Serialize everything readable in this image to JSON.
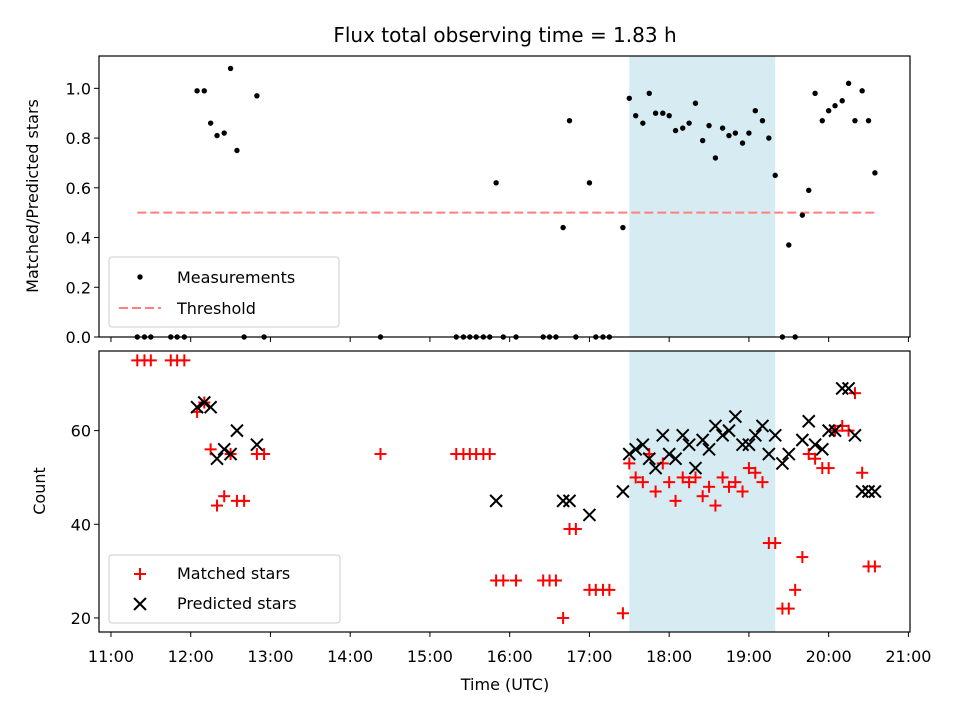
{
  "chart_data": {
    "title": "Flux total observing time = 1.83 h",
    "xlabel": "Time (UTC)",
    "x_tick_labels": [
      "11:00",
      "12:00",
      "13:00",
      "14:00",
      "15:00",
      "16:00",
      "17:00",
      "18:00",
      "19:00",
      "20:00",
      "21:00"
    ],
    "xlim_hours": [
      10.85,
      21.02
    ],
    "highlight_span_hours": [
      17.5,
      19.33
    ],
    "colors": {
      "highlight": "#add8e6",
      "threshold": "#ff7f7f",
      "matched": "#ff0000",
      "predicted": "#000000",
      "measure": "#000000"
    },
    "panels": [
      {
        "type": "scatter",
        "ylabel": "Matched/Predicted stars",
        "ylim": [
          0,
          1.13
        ],
        "y_ticks": [
          0.0,
          0.2,
          0.4,
          0.6,
          0.8,
          1.0
        ],
        "y_tick_labels": [
          "0.0",
          "0.2",
          "0.4",
          "0.6",
          "0.8",
          "1.0"
        ],
        "legend": [
          "Measurements",
          "Threshold"
        ],
        "threshold": {
          "value": 0.5,
          "x_range": [
            11.33,
            20.58
          ]
        },
        "series": [
          {
            "name": "Measurements",
            "x": [
              11.33,
              11.42,
              11.5,
              11.75,
              11.83,
              11.92,
              12.08,
              12.17,
              12.25,
              12.33,
              12.42,
              12.5,
              12.58,
              12.67,
              12.83,
              12.92,
              14.38,
              15.33,
              15.42,
              15.5,
              15.58,
              15.67,
              15.75,
              15.83,
              15.92,
              16.08,
              16.42,
              16.5,
              16.58,
              16.67,
              16.75,
              16.83,
              17.0,
              17.08,
              17.17,
              17.25,
              17.42,
              17.5,
              17.58,
              17.67,
              17.75,
              17.83,
              17.92,
              18.0,
              18.08,
              18.17,
              18.25,
              18.33,
              18.42,
              18.5,
              18.58,
              18.67,
              18.75,
              18.83,
              18.92,
              19.0,
              19.08,
              19.17,
              19.25,
              19.33,
              19.42,
              19.5,
              19.58,
              19.67,
              19.75,
              19.83,
              19.92,
              20.0,
              20.08,
              20.17,
              20.25,
              20.33,
              20.42,
              20.5,
              20.58
            ],
            "y": [
              0,
              0,
              0,
              0,
              0,
              0,
              0.99,
              0.99,
              0.86,
              0.81,
              0.82,
              1.08,
              0.75,
              0,
              0.97,
              0,
              0,
              0,
              0,
              0,
              0,
              0,
              0,
              0.62,
              0,
              0,
              0,
              0,
              0,
              0.44,
              0.87,
              0,
              0.62,
              0,
              0,
              0,
              0.44,
              0.96,
              0.89,
              0.86,
              0.98,
              0.9,
              0.9,
              0.89,
              0.83,
              0.84,
              0.86,
              0.94,
              0.79,
              0.85,
              0.72,
              0.84,
              0.81,
              0.82,
              0.78,
              0.82,
              0.91,
              0.87,
              0.8,
              0.65,
              0,
              0.37,
              0,
              0.49,
              0.59,
              0.98,
              0.87,
              0.91,
              0.93,
              0.95,
              1.02,
              0.87,
              0.99,
              0.87,
              0.66
            ]
          }
        ]
      },
      {
        "type": "scatter",
        "ylabel": "Count",
        "ylim": [
          17,
          77
        ],
        "y_ticks": [
          20,
          40,
          60
        ],
        "y_tick_labels": [
          "20",
          "40",
          "60"
        ],
        "legend": [
          "Matched stars",
          "Predicted stars"
        ],
        "series": [
          {
            "name": "Matched stars",
            "marker": "+",
            "x": [
              11.33,
              11.42,
              11.5,
              11.75,
              11.83,
              11.92,
              12.08,
              12.17,
              12.25,
              12.33,
              12.42,
              12.5,
              12.58,
              12.67,
              12.83,
              12.92,
              14.38,
              15.33,
              15.42,
              15.5,
              15.58,
              15.67,
              15.75,
              15.83,
              15.92,
              16.08,
              16.42,
              16.5,
              16.58,
              16.67,
              16.75,
              16.83,
              17.0,
              17.08,
              17.17,
              17.25,
              17.42,
              17.5,
              17.58,
              17.67,
              17.75,
              17.83,
              17.92,
              18.0,
              18.08,
              18.17,
              18.25,
              18.33,
              18.42,
              18.5,
              18.58,
              18.67,
              18.75,
              18.83,
              18.92,
              19.0,
              19.08,
              19.17,
              19.25,
              19.33,
              19.42,
              19.5,
              19.58,
              19.67,
              19.75,
              19.83,
              19.92,
              20.0,
              20.08,
              20.17,
              20.25,
              20.33,
              20.42,
              20.5,
              20.58
            ],
            "y": [
              75,
              75,
              75,
              75,
              75,
              75,
              64,
              66,
              56,
              44,
              46,
              55,
              45,
              45,
              55,
              55,
              55,
              55,
              55,
              55,
              55,
              55,
              55,
              28,
              28,
              28,
              28,
              28,
              28,
              20,
              39,
              39,
              26,
              26,
              26,
              26,
              21,
              53,
              50,
              49,
              55,
              47,
              53,
              49,
              45,
              50,
              49,
              50,
              46,
              48,
              44,
              50,
              48,
              49,
              47,
              52,
              51,
              49,
              36,
              36,
              22,
              22,
              26,
              33,
              55,
              54,
              52,
              52,
              60,
              61,
              60,
              68,
              51,
              31,
              31
            ]
          },
          {
            "name": "Predicted stars",
            "marker": "x",
            "x": [
              12.08,
              12.17,
              12.25,
              12.33,
              12.42,
              12.5,
              12.58,
              12.83,
              15.83,
              16.67,
              16.75,
              17.0,
              17.42,
              17.5,
              17.58,
              17.67,
              17.75,
              17.83,
              17.92,
              18.0,
              18.08,
              18.17,
              18.25,
              18.33,
              18.42,
              18.5,
              18.58,
              18.67,
              18.75,
              18.83,
              18.92,
              19.0,
              19.08,
              19.17,
              19.25,
              19.33,
              19.42,
              19.5,
              19.67,
              19.75,
              19.83,
              19.92,
              20.0,
              20.08,
              20.17,
              20.25,
              20.33,
              20.42,
              20.5,
              20.58
            ],
            "y": [
              65,
              66,
              65,
              54,
              56,
              55,
              60,
              57,
              45,
              45,
              45,
              42,
              47,
              55,
              56,
              57,
              54,
              52,
              59,
              55,
              54,
              59,
              57,
              52,
              58,
              56,
              61,
              59,
              60,
              63,
              57,
              57,
              59,
              61,
              55,
              59,
              53,
              55,
              58,
              62,
              57,
              56,
              60,
              60,
              69,
              69,
              59,
              47,
              47,
              47
            ]
          }
        ]
      }
    ]
  }
}
